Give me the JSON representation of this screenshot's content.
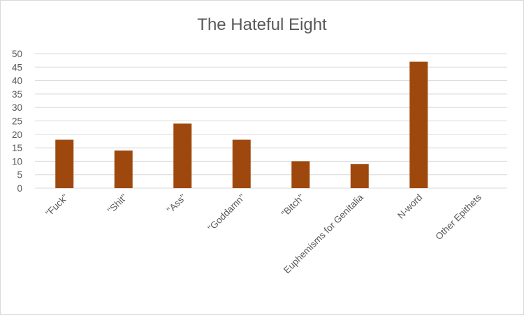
{
  "chart_data": {
    "type": "bar",
    "title": "The Hateful Eight",
    "categories": [
      "\"Fuck\"",
      "\"Shit\"",
      "\"Ass\"",
      "\"Goddamn\"",
      "\"Bitch\"",
      "Euphemisms for Genitalia",
      "N-word",
      "Other Epithets"
    ],
    "values": [
      18,
      14,
      24,
      18,
      10,
      9,
      47,
      0
    ],
    "yticks": [
      "0",
      "5",
      "10",
      "15",
      "20",
      "25",
      "30",
      "35",
      "40",
      "45",
      "50"
    ],
    "ylim": [
      0,
      50
    ],
    "grid": true,
    "legend": "none",
    "bar_color": "#9e480e"
  }
}
